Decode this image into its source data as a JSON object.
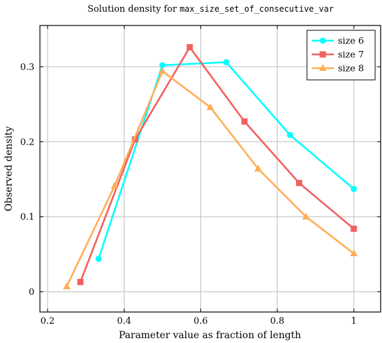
{
  "chart_data": {
    "type": "line",
    "title_prefix": "Solution density for ",
    "title_code": "max_size_set_of_consecutive_var",
    "xlabel": "Parameter value as fraction of length",
    "ylabel": "Observed density",
    "xlim": [
      0.18,
      1.07
    ],
    "ylim": [
      -0.027,
      0.355
    ],
    "xticks": [
      0.2,
      0.4,
      0.6,
      0.8,
      1.0
    ],
    "xtick_labels": [
      "0.2",
      "0.4",
      "0.6",
      "0.8",
      "1"
    ],
    "yticks": [
      0,
      0.1,
      0.2,
      0.3
    ],
    "ytick_labels": [
      "0",
      "0.1",
      "0.2",
      "0.3"
    ],
    "grid": true,
    "legend_position": "top-right",
    "series": [
      {
        "name": "size 6",
        "color": "#00ffff",
        "marker": "circle",
        "x": [
          0.3333,
          0.5,
          0.6667,
          0.8333,
          1.0
        ],
        "y": [
          0.044,
          0.302,
          0.306,
          0.209,
          0.137
        ]
      },
      {
        "name": "size 7",
        "color": "#f26060",
        "marker": "square",
        "x": [
          0.2857,
          0.4286,
          0.5714,
          0.7143,
          0.8571,
          1.0
        ],
        "y": [
          0.013,
          0.203,
          0.326,
          0.227,
          0.145,
          0.084
        ]
      },
      {
        "name": "size 8",
        "color": "#ffae57",
        "marker": "triangle",
        "x": [
          0.25,
          0.375,
          0.5,
          0.625,
          0.75,
          0.875,
          1.0
        ],
        "y": [
          0.007,
          0.141,
          0.294,
          0.246,
          0.164,
          0.1,
          0.051
        ]
      }
    ]
  }
}
